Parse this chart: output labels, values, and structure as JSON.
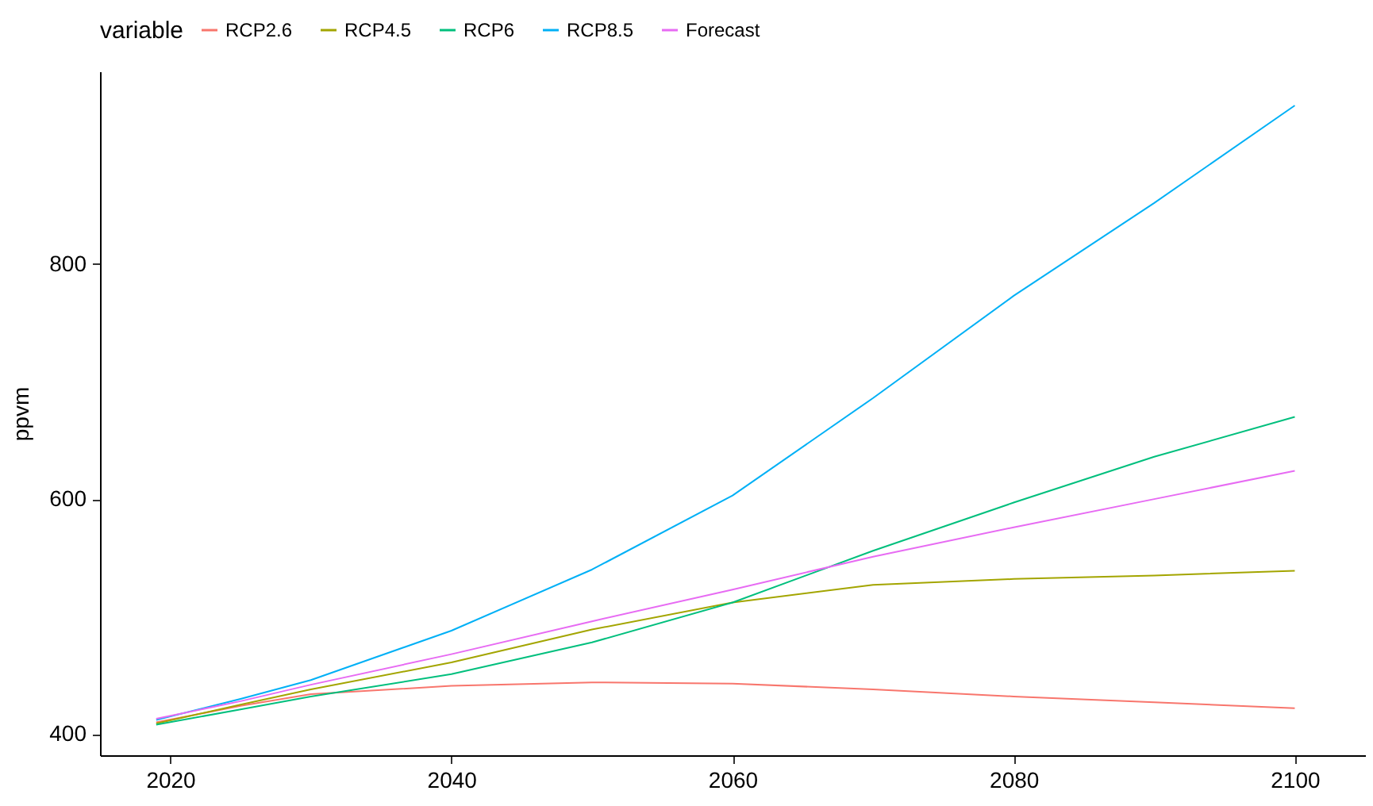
{
  "chart_data": {
    "type": "line",
    "ylabel": "ppvm",
    "legend_title": "variable",
    "legend": "top",
    "x": [
      2019,
      2025,
      2030,
      2040,
      2050,
      2060,
      2070,
      2080,
      2090,
      2100
    ],
    "xlim": [
      2015,
      2105
    ],
    "xticks": [
      2020,
      2040,
      2060,
      2080,
      2100
    ],
    "ylim": [
      382,
      964
    ],
    "yticks": [
      400,
      600,
      800
    ],
    "series": [
      {
        "name": "RCP2.6",
        "color": "#f8766d",
        "values": [
          410,
          424,
          434,
          441,
          444,
          443,
          438,
          432,
          427,
          422
        ]
      },
      {
        "name": "RCP4.5",
        "color": "#a3a500",
        "values": [
          409,
          425,
          438,
          461,
          489,
          512,
          527,
          532,
          535,
          539
        ]
      },
      {
        "name": "RCP6",
        "color": "#00bf7d",
        "values": [
          408,
          421,
          432,
          451,
          478,
          512,
          556,
          597,
          636,
          670
        ]
      },
      {
        "name": "RCP8.5",
        "color": "#00b0f6",
        "values": [
          412,
          430,
          446,
          488,
          540,
          603,
          686,
          773,
          852,
          935
        ]
      },
      {
        "name": "Forecast",
        "color": "#e76bf3",
        "values": [
          413,
          428,
          442,
          468,
          496,
          523,
          551,
          576,
          600,
          624
        ]
      }
    ]
  }
}
